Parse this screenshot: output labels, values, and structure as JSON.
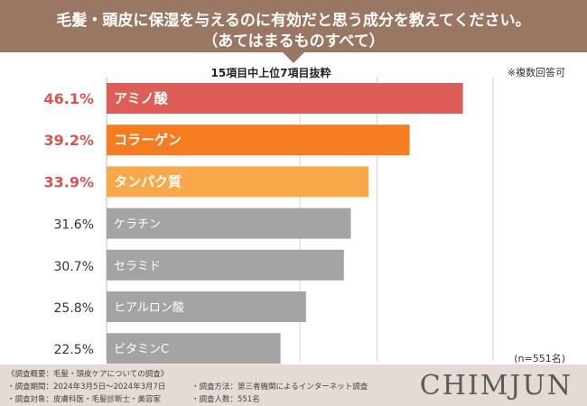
{
  "header": {
    "line1": "毛髪・頭皮に保湿を与えるのに有効だと思う成分を教えてください。",
    "line2": "（あてはまるものすべて）"
  },
  "subtitle": "15項目中上位7項目抜粋",
  "note": "※複数回答可",
  "sample": "(n=551名)",
  "chart_data": {
    "type": "bar",
    "orientation": "horizontal",
    "title": "15項目中上位7項目抜粋",
    "categories": [
      "アミノ酸",
      "コラーゲン",
      "タンパク質",
      "ケラチン",
      "セラミド",
      "ヒアルロン酸",
      "ビタミンC"
    ],
    "values": [
      46.1,
      39.2,
      33.9,
      31.6,
      30.7,
      25.8,
      22.5
    ],
    "labels": [
      "46.1%",
      "39.2%",
      "33.9%",
      "31.6%",
      "30.7%",
      "25.8%",
      "22.5%"
    ],
    "colors": [
      "#df5d57",
      "#f57c1f",
      "#f8a849",
      "#a4a4a4",
      "#a4a4a4",
      "#a4a4a4",
      "#a4a4a4"
    ],
    "label_colors": [
      "#d9534f",
      "#d9534f",
      "#d9534f",
      "#333333",
      "#333333",
      "#333333",
      "#333333"
    ],
    "grid": true
  },
  "footer": {
    "overview": "《調査概要：毛髪・頭皮ケアについての調査》",
    "period": "・調査期間：2024年3月5日〜2024年3月7日",
    "method": "・調査方法：第三者機関によるインターネット調査",
    "target": "・調査対象：皮膚科医・毛髪診断士・美容家",
    "count": "・調査人数：551名",
    "logo": "CHIMJUN"
  }
}
